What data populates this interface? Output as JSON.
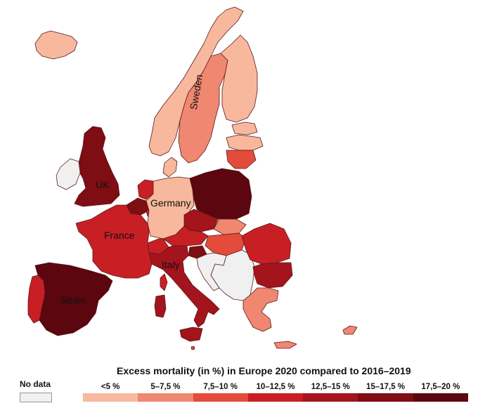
{
  "legend": {
    "title": "Excess mortality (in %) in Europe 2020 compared to 2016–2019",
    "no_data_label": "No data",
    "classes": [
      {
        "label": "<5 %",
        "color": "#f8b89d"
      },
      {
        "label": "5–7,5 %",
        "color": "#f08770"
      },
      {
        "label": "7,5–10 %",
        "color": "#e34b3b"
      },
      {
        "label": "10–12,5 %",
        "color": "#c81f24"
      },
      {
        "label": "12,5–15 %",
        "color": "#a3141c"
      },
      {
        "label": "15–17,5 %",
        "color": "#7e0d14"
      },
      {
        "label": "17,5–20 %",
        "color": "#5c0610"
      }
    ],
    "no_data_color": "#f0f0f0"
  },
  "labels": {
    "sweden": "Sweden",
    "uk": "UK",
    "germany": "Germany",
    "france": "France",
    "italy": "Italy",
    "spain": "Spain"
  },
  "regions": {
    "iceland": "<5 %",
    "norway": "<5 %",
    "sweden": "5–7,5 %",
    "finland": "<5 %",
    "estonia": "<5 %",
    "latvia": "<5 %",
    "lithuania": "7,5–10 %",
    "uk": "15–17,5 %",
    "ireland": "No data",
    "denmark": "<5 %",
    "netherlands": "10–12,5 %",
    "belgium": "15–17,5 %",
    "luxembourg": "10–12,5 %",
    "germany": "<5 %",
    "poland": "17,5–20 %",
    "czechia": "12,5–15 %",
    "slovakia": "5–7,5 %",
    "austria": "10–12,5 %",
    "switzerland": "10–12,5 %",
    "hungary": "7,5–10 %",
    "slovenia": "15–17,5 %",
    "croatia": "No data",
    "balkans": "No data",
    "romania": "10–12,5 %",
    "bulgaria": "12,5–15 %",
    "greece": "5–7,5 %",
    "france": "10–12,5 %",
    "italy": "12,5–15 %",
    "spain": "17,5–20 %",
    "portugal": "10–12,5 %",
    "cyprus": "5–7,5 %",
    "malta": "7,5–10 %"
  }
}
